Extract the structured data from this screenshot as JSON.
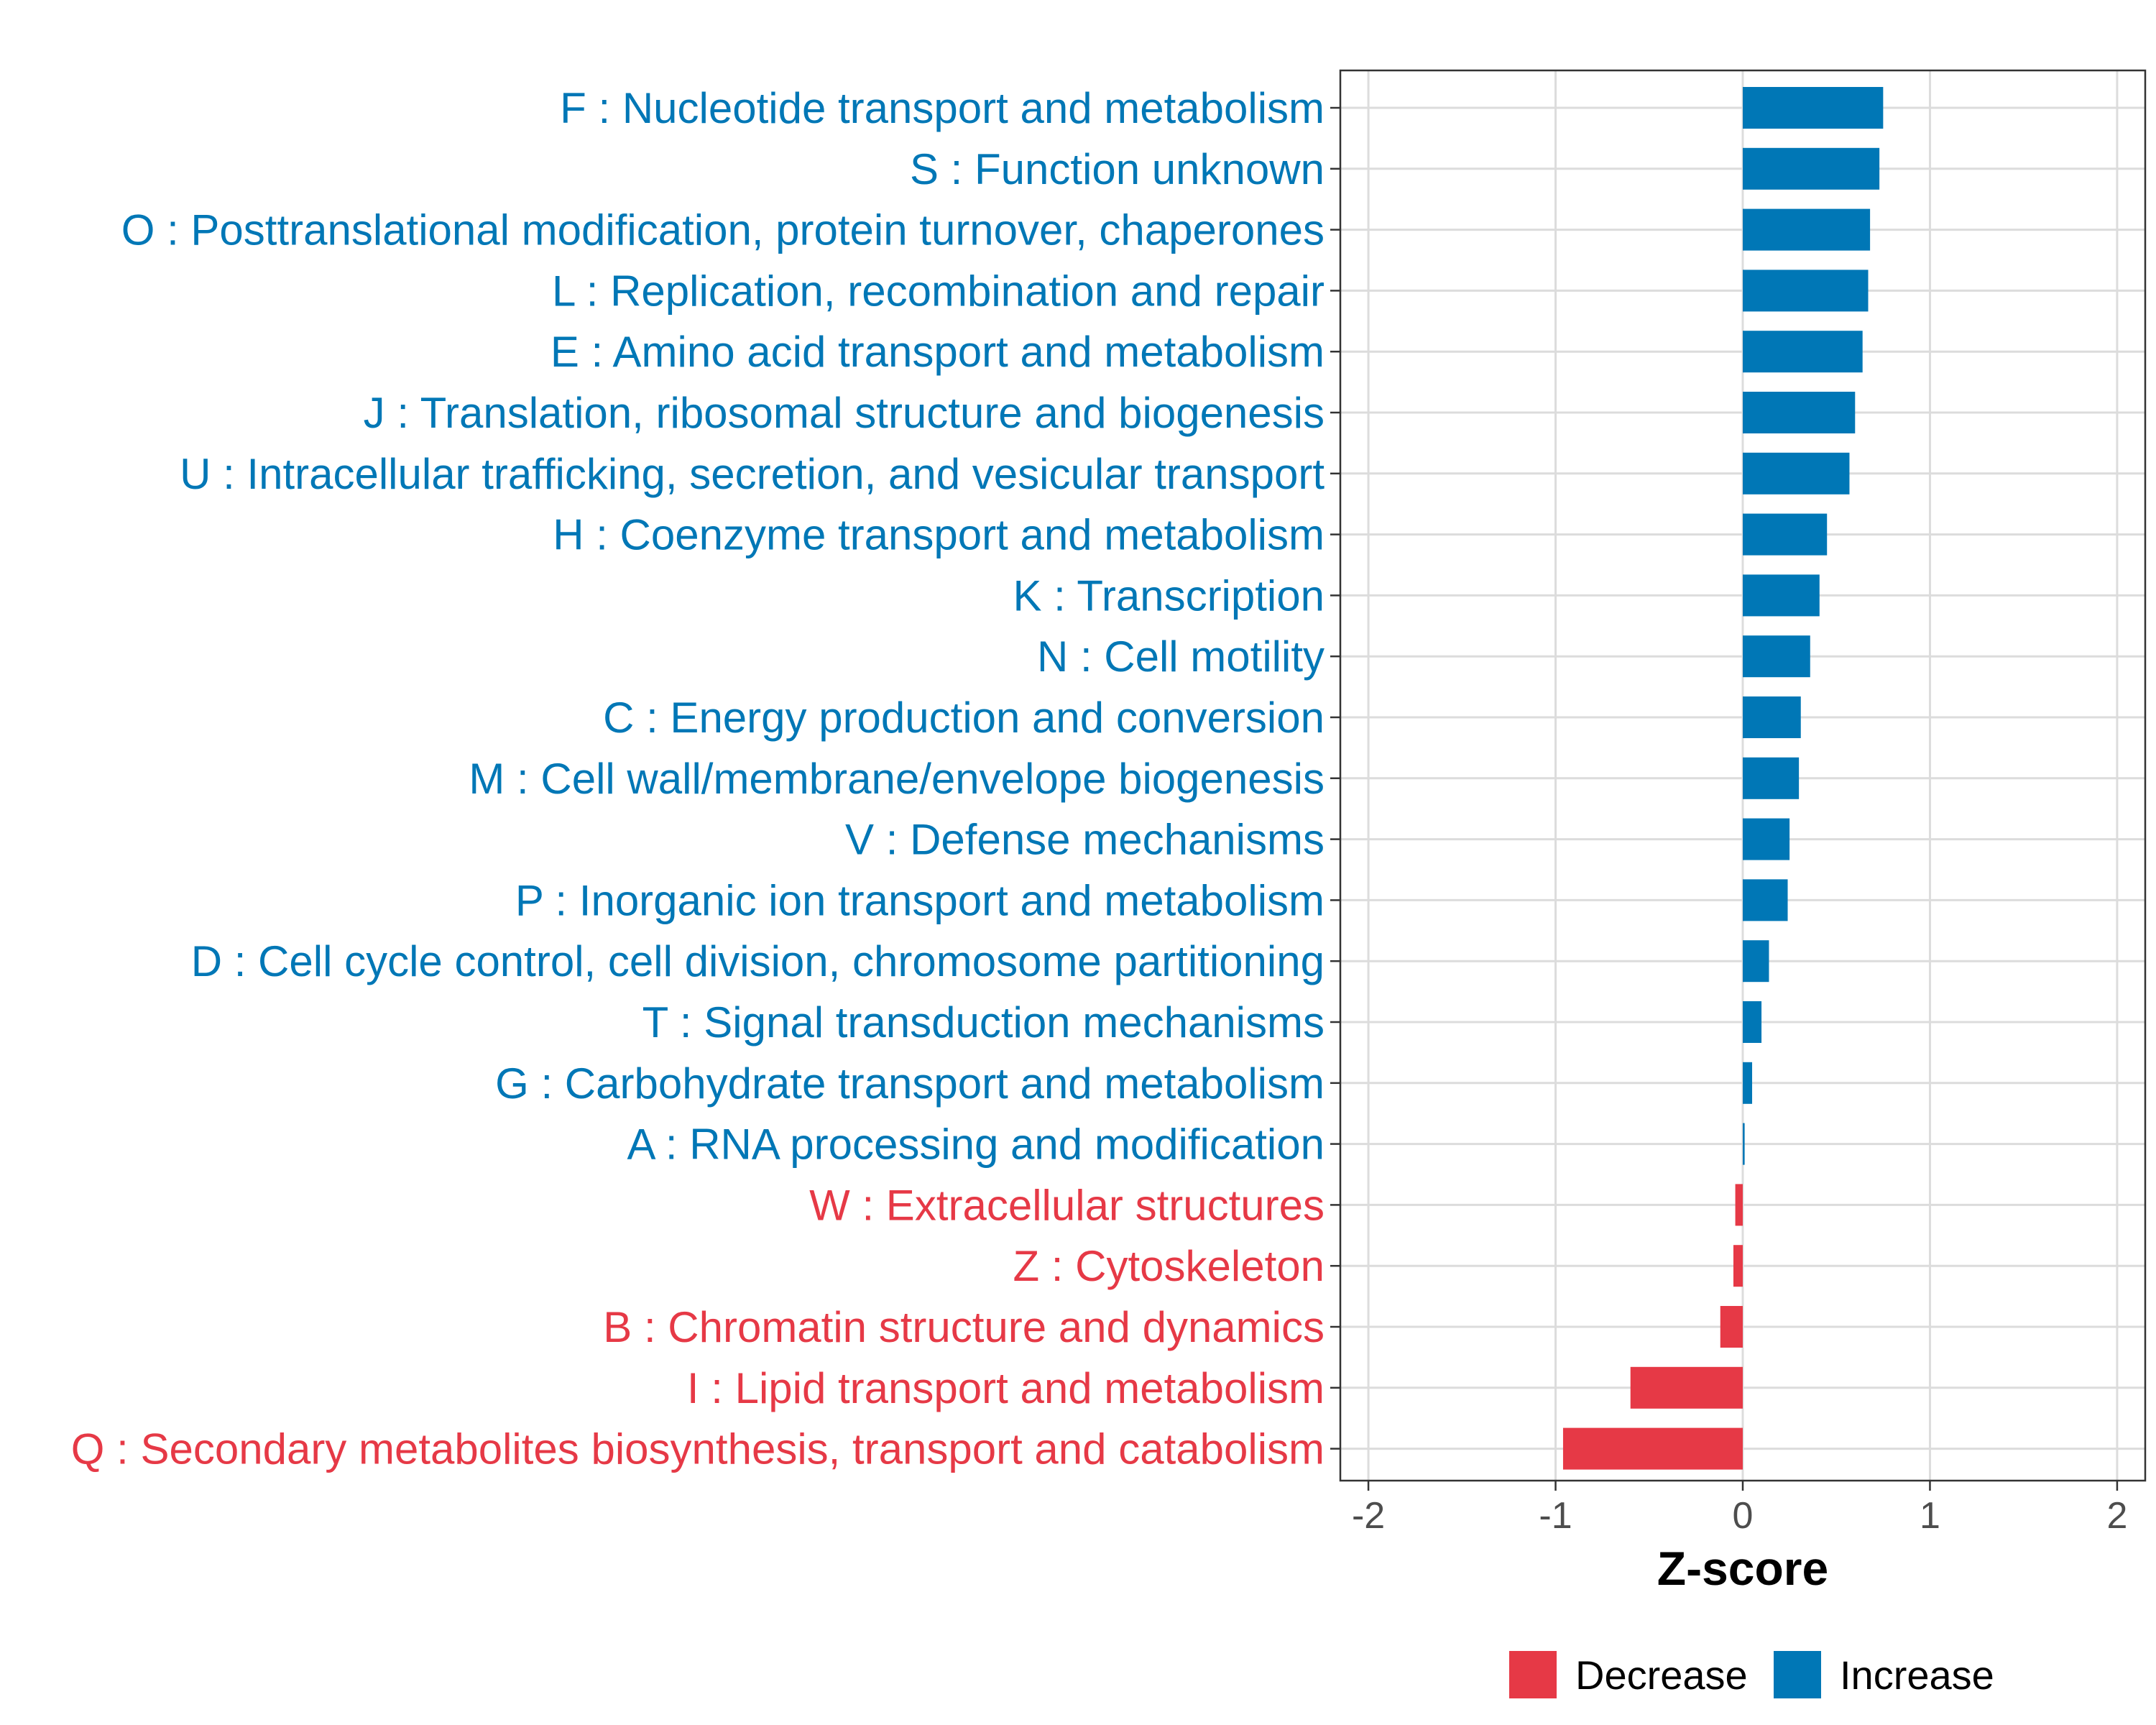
{
  "chart_data": {
    "type": "bar",
    "orientation": "horizontal",
    "xlabel": "Z-score",
    "xlim": [
      -2.15,
      2.15
    ],
    "xticks": [
      -2,
      -1,
      0,
      1,
      2
    ],
    "xtick_labels": [
      "-2",
      "-1",
      "0",
      "1",
      "2"
    ],
    "grid": true,
    "legend_position": "bottom",
    "colors": {
      "Increase": "#0077b6",
      "Decrease": "#e63946"
    },
    "categories": [
      {
        "label": "F : Nucleotide transport and metabolism",
        "value": 0.75,
        "direction": "Increase"
      },
      {
        "label": "S : Function unknown",
        "value": 0.73,
        "direction": "Increase"
      },
      {
        "label": "O : Posttranslational modification, protein turnover, chaperones",
        "value": 0.68,
        "direction": "Increase"
      },
      {
        "label": "L : Replication, recombination and repair",
        "value": 0.67,
        "direction": "Increase"
      },
      {
        "label": "E : Amino acid transport and metabolism",
        "value": 0.64,
        "direction": "Increase"
      },
      {
        "label": "J : Translation, ribosomal structure and biogenesis",
        "value": 0.6,
        "direction": "Increase"
      },
      {
        "label": "U : Intracellular trafficking, secretion, and vesicular transport",
        "value": 0.57,
        "direction": "Increase"
      },
      {
        "label": "H : Coenzyme transport and metabolism",
        "value": 0.45,
        "direction": "Increase"
      },
      {
        "label": "K : Transcription",
        "value": 0.41,
        "direction": "Increase"
      },
      {
        "label": "N : Cell motility",
        "value": 0.36,
        "direction": "Increase"
      },
      {
        "label": "C : Energy production and conversion",
        "value": 0.31,
        "direction": "Increase"
      },
      {
        "label": "M : Cell wall/membrane/envelope biogenesis",
        "value": 0.3,
        "direction": "Increase"
      },
      {
        "label": "V : Defense mechanisms",
        "value": 0.25,
        "direction": "Increase"
      },
      {
        "label": "P : Inorganic ion transport and metabolism",
        "value": 0.24,
        "direction": "Increase"
      },
      {
        "label": "D : Cell cycle control, cell division, chromosome partitioning",
        "value": 0.14,
        "direction": "Increase"
      },
      {
        "label": "T : Signal transduction mechanisms",
        "value": 0.1,
        "direction": "Increase"
      },
      {
        "label": "G : Carbohydrate transport and metabolism",
        "value": 0.05,
        "direction": "Increase"
      },
      {
        "label": "A : RNA processing and modification",
        "value": 0.01,
        "direction": "Increase"
      },
      {
        "label": "W : Extracellular structures",
        "value": -0.04,
        "direction": "Decrease"
      },
      {
        "label": "Z : Cytoskeleton",
        "value": -0.05,
        "direction": "Decrease"
      },
      {
        "label": "B : Chromatin structure and dynamics",
        "value": -0.12,
        "direction": "Decrease"
      },
      {
        "label": "I : Lipid transport and metabolism",
        "value": -0.6,
        "direction": "Decrease"
      },
      {
        "label": "Q : Secondary metabolites biosynthesis, transport and catabolism",
        "value": -0.96,
        "direction": "Decrease"
      }
    ],
    "legend": [
      {
        "label": "Decrease",
        "color": "#e63946"
      },
      {
        "label": "Increase",
        "color": "#0077b6"
      }
    ]
  }
}
